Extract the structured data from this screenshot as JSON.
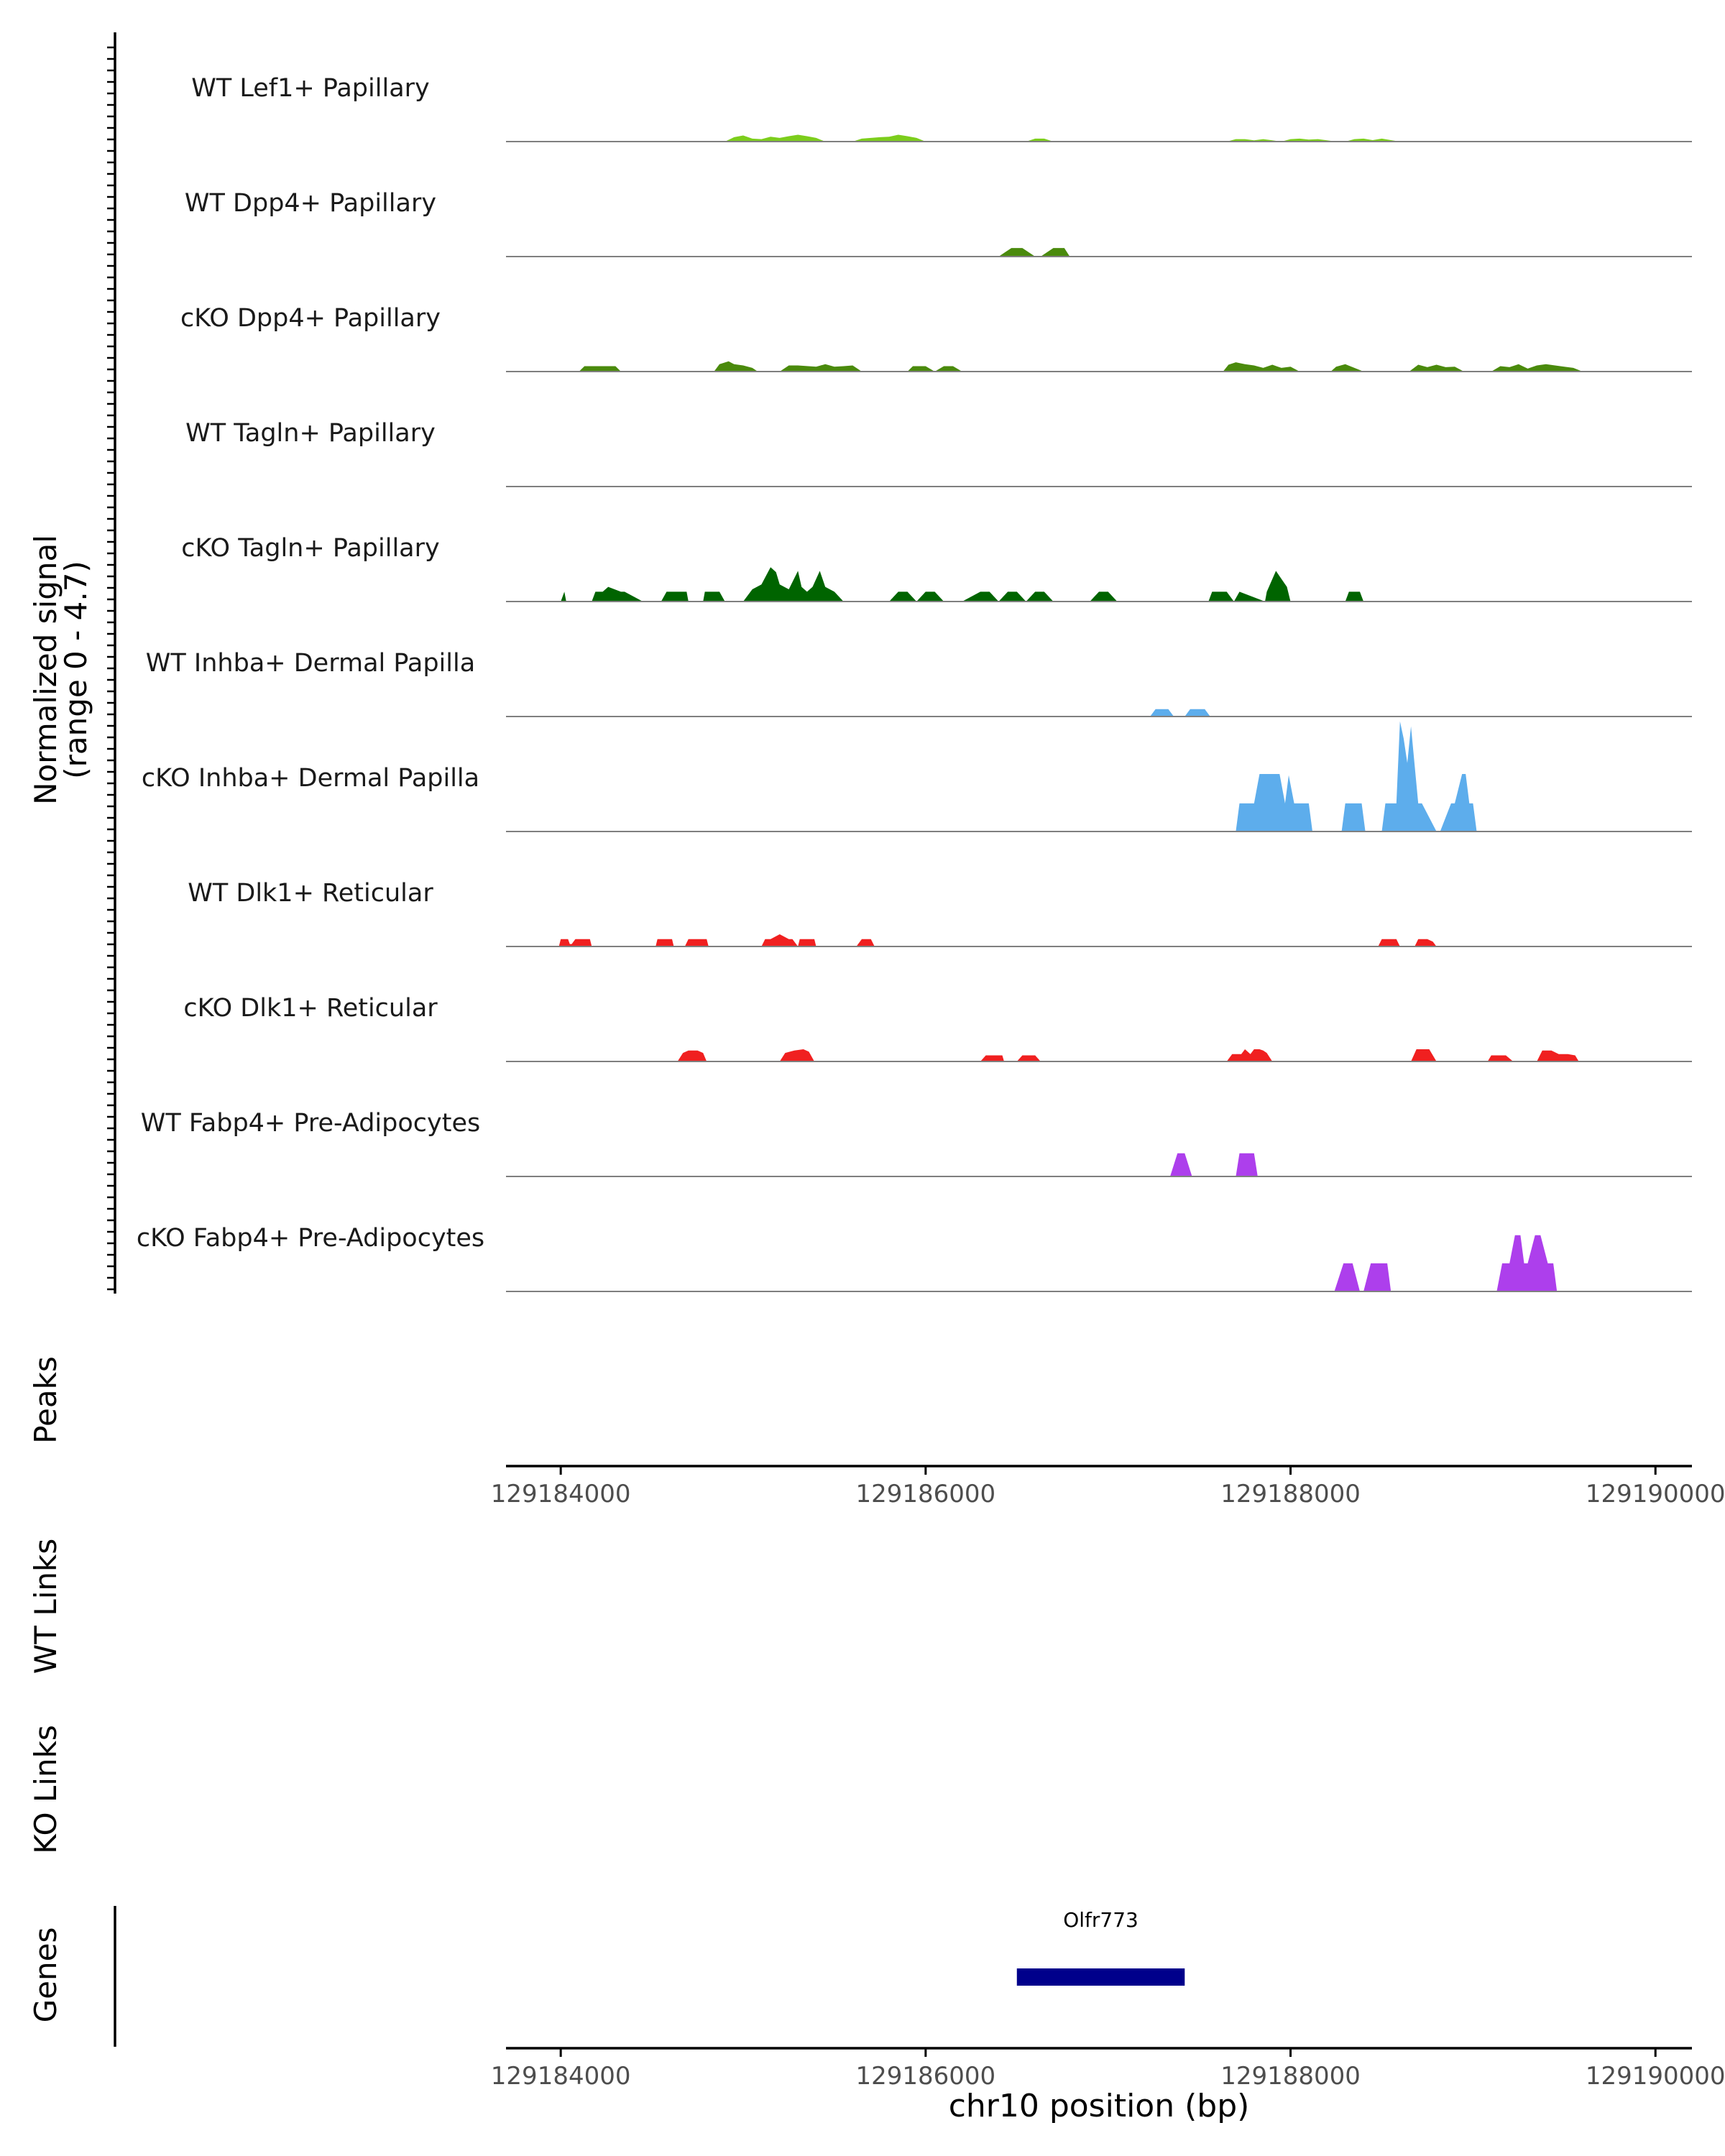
{
  "chart_data": {
    "type": "area",
    "title": "",
    "xlabel": "chr10 position (bp)",
    "ylabel": "Normalized signal",
    "ylabel_range": "(range 0 - 4.7)",
    "ylim": [
      0,
      4.7
    ],
    "xlim": [
      129183700,
      129190200
    ],
    "x_ticks": [
      129184000,
      129186000,
      129188000,
      129190000
    ],
    "x_tick_labels": [
      "129184000",
      "129186000",
      "129188000",
      "129190000"
    ],
    "track_labels": {
      "peaks": "Peaks",
      "wt_links": "WT Links",
      "ko_links": "KO Links",
      "genes": "Genes"
    },
    "genes": [
      {
        "name": "Olfr773",
        "start": 129186500,
        "end": 129187420,
        "color": "#00008B"
      }
    ],
    "series": [
      {
        "name": "WT Lef1+ Papillary",
        "color": "#7CCD1C",
        "x": [
          129184900,
          129184950,
          129185000,
          129185050,
          129185100,
          129185150,
          129185200,
          129185250,
          129185300,
          129185350,
          129185400,
          129185450,
          129185600,
          129185650,
          129185700,
          129185750,
          129185800,
          129185850,
          129185900,
          129185950,
          129186000,
          129186550,
          129186600,
          129186650,
          129186700,
          129187650,
          129187700,
          129187750,
          129187800,
          129187850,
          129187900,
          129187950,
          129188000,
          129188050,
          129188100,
          129188150,
          129188200,
          129188250,
          129188300,
          129188350,
          129188400,
          129188450,
          129188500,
          129188550,
          129188600
        ],
        "y": [
          0,
          0.18,
          0.25,
          0.12,
          0.1,
          0.2,
          0.15,
          0.22,
          0.28,
          0.22,
          0.15,
          0,
          0,
          0.12,
          0.15,
          0.18,
          0.2,
          0.28,
          0.22,
          0.15,
          0,
          0,
          0.12,
          0.12,
          0,
          0,
          0.1,
          0.1,
          0.05,
          0.1,
          0.05,
          0,
          0.1,
          0.12,
          0.08,
          0.1,
          0.05,
          0,
          0,
          0.1,
          0.12,
          0.06,
          0.12,
          0.06,
          0
        ]
      },
      {
        "name": "WT Dpp4+ Papillary",
        "color": "#4A8A0C",
        "x": [
          129186400,
          129186470,
          129186530,
          129186600,
          129186630,
          129186700,
          129186760,
          129186790
        ],
        "y": [
          0,
          0.35,
          0.35,
          0,
          0,
          0.35,
          0.35,
          0
        ]
      },
      {
        "name": "cKO Dpp4+ Papillary",
        "color": "#4A8A0C",
        "x": [
          129184100,
          129184130,
          129184300,
          129184330,
          129184840,
          129184870,
          129184920,
          129184950,
          129185000,
          129185050,
          129185080,
          129185200,
          129185250,
          129185300,
          129185400,
          129185450,
          129185500,
          129185550,
          129185600,
          129185650,
          129185900,
          129185930,
          129186000,
          129186050,
          129186100,
          129186150,
          129186200,
          129187630,
          129187660,
          129187700,
          129187750,
          129187800,
          129187850,
          129187900,
          129187950,
          129188000,
          129188050,
          129188220,
          129188250,
          129188300,
          129188350,
          129188400,
          129188650,
          129188700,
          129188750,
          129188800,
          129188850,
          129188900,
          129188950,
          129189100,
          129189150,
          129189200,
          129189250,
          129189300,
          129189350,
          129189400,
          129189450,
          129189500,
          129189550,
          129189600
        ],
        "y": [
          0,
          0.22,
          0.22,
          0,
          0,
          0.3,
          0.42,
          0.3,
          0.25,
          0.15,
          0,
          0,
          0.25,
          0.25,
          0.2,
          0.3,
          0.2,
          0.22,
          0.25,
          0,
          0,
          0.22,
          0.22,
          0,
          0.22,
          0.22,
          0,
          0,
          0.28,
          0.38,
          0.3,
          0.25,
          0.15,
          0.28,
          0.15,
          0.2,
          0,
          0,
          0.2,
          0.3,
          0.15,
          0,
          0,
          0.28,
          0.18,
          0.28,
          0.18,
          0.2,
          0,
          0,
          0.22,
          0.18,
          0.3,
          0.12,
          0.25,
          0.3,
          0.25,
          0.2,
          0.15,
          0
        ]
      },
      {
        "name": "WT Tagln+ Papillary",
        "color": "#006400",
        "x": [],
        "y": []
      },
      {
        "name": "cKO Tagln+ Papillary",
        "color": "#006400",
        "x": [
          129184000,
          129184020,
          129184030,
          129184170,
          129184190,
          129184230,
          129184260,
          129184330,
          129184350,
          129184450,
          129184550,
          129184580,
          129184690,
          129184700,
          129184780,
          129184790,
          129184870,
          129184900,
          129185000,
          129185050,
          129185100,
          129185150,
          129185180,
          129185200,
          129185250,
          129185300,
          129185320,
          129185350,
          129185380,
          129185420,
          129185450,
          129185500,
          129185550,
          129185800,
          129185850,
          129185900,
          129185950,
          129186000,
          129186050,
          129186100,
          129186200,
          129186300,
          129186350,
          129186400,
          129186450,
          129186500,
          129186550,
          129186600,
          129186650,
          129186700,
          129186900,
          129186950,
          129187000,
          129187050,
          129187550,
          129187570,
          129187650,
          129187690,
          129187720,
          129187860,
          129187870,
          129187920,
          129187980,
          129188000,
          129188300,
          129188320,
          129188380,
          129188400
        ],
        "y": [
          0,
          0.4,
          0,
          0,
          0.4,
          0.4,
          0.6,
          0.4,
          0.4,
          0,
          0,
          0.4,
          0.4,
          0,
          0,
          0.4,
          0.4,
          0,
          0,
          0.5,
          0.7,
          1.4,
          1.2,
          0.7,
          0.5,
          1.25,
          0.6,
          0.4,
          0.6,
          1.25,
          0.6,
          0.4,
          0,
          0,
          0.4,
          0.4,
          0,
          0.4,
          0.4,
          0,
          0,
          0.4,
          0.4,
          0,
          0.4,
          0.4,
          0,
          0.4,
          0.4,
          0,
          0,
          0.4,
          0.4,
          0,
          0,
          0.4,
          0.4,
          0,
          0.4,
          0,
          0.4,
          1.25,
          0.6,
          0,
          0,
          0.4,
          0.4,
          0
        ]
      },
      {
        "name": "WT Inhba+ Dermal Papilla",
        "color": "#5DADEC",
        "x": [
          129187230,
          129187260,
          129187330,
          129187360,
          129187420,
          129187450,
          129187530,
          129187560
        ],
        "y": [
          0,
          0.3,
          0.3,
          0,
          0,
          0.3,
          0.3,
          0
        ]
      },
      {
        "name": "cKO Inhba+ Dermal Papilla",
        "color": "#5DADEC",
        "x": [
          129187700,
          129187720,
          129187800,
          129187830,
          129187940,
          129187970,
          129187990,
          129188020,
          129188100,
          129188120,
          129188280,
          129188300,
          129188390,
          129188410,
          129188500,
          129188520,
          129188580,
          129188600,
          129188620,
          129188640,
          129188660,
          129188700,
          129188720,
          129188800,
          129188820,
          129188880,
          129188900,
          129188940,
          129188960,
          129188980,
          129189000,
          129189020
        ],
        "y": [
          0,
          1.15,
          1.15,
          2.35,
          2.35,
          1.15,
          2.3,
          1.15,
          1.15,
          0,
          0,
          1.15,
          1.15,
          0,
          0,
          1.15,
          1.15,
          4.5,
          3.8,
          2.8,
          4.3,
          1.15,
          1.15,
          0,
          0,
          1.15,
          1.15,
          2.35,
          2.35,
          1.15,
          1.15,
          0
        ]
      },
      {
        "name": "WT Dlk1+ Reticular",
        "color": "#F02020",
        "x": [
          129183990,
          129184000,
          129184040,
          129184050,
          129184060,
          129184080,
          129184160,
          129184170,
          129184520,
          129184530,
          129184610,
          129184620,
          129184680,
          129184700,
          129184740,
          129184760,
          129184800,
          129184810,
          129185100,
          129185120,
          129185150,
          129185200,
          129185250,
          129185270,
          129185300,
          129185310,
          129185390,
          129185400,
          129185620,
          129185650,
          129185700,
          129185720,
          129188480,
          129188500,
          129188580,
          129188600,
          129188680,
          129188700,
          129188750,
          129188780,
          129188800
        ],
        "y": [
          0,
          0.3,
          0.3,
          0.1,
          0.1,
          0.3,
          0.3,
          0,
          0,
          0.3,
          0.3,
          0,
          0,
          0.3,
          0.3,
          0.3,
          0.3,
          0,
          0,
          0.3,
          0.3,
          0.5,
          0.3,
          0.3,
          0,
          0.3,
          0.3,
          0,
          0,
          0.3,
          0.3,
          0,
          0,
          0.3,
          0.3,
          0,
          0,
          0.3,
          0.3,
          0.2,
          0
        ]
      },
      {
        "name": "cKO Dlk1+ Reticular",
        "color": "#F02020",
        "x": [
          129184640,
          129184670,
          129184700,
          129184750,
          129184780,
          129184800,
          129185200,
          129185230,
          129185280,
          129185330,
          129185360,
          129185390,
          129186300,
          129186330,
          129186420,
          129186430,
          129186500,
          129186530,
          129186600,
          129186630,
          129187650,
          129187680,
          129187730,
          129187750,
          129187780,
          129187800,
          129187830,
          129187850,
          129187870,
          129187900,
          129188660,
          129188690,
          129188760,
          129188800,
          129189080,
          129189100,
          129189180,
          129189220,
          129189350,
          129189380,
          129189430,
          129189470,
          129189520,
          129189560,
          129189580
        ],
        "y": [
          0,
          0.35,
          0.45,
          0.45,
          0.35,
          0,
          0,
          0.35,
          0.45,
          0.5,
          0.4,
          0,
          0,
          0.25,
          0.25,
          0,
          0,
          0.25,
          0.25,
          0,
          0,
          0.3,
          0.3,
          0.5,
          0.3,
          0.5,
          0.5,
          0.45,
          0.35,
          0,
          0,
          0.5,
          0.5,
          0,
          0,
          0.25,
          0.25,
          0,
          0,
          0.45,
          0.45,
          0.3,
          0.3,
          0.25,
          0
        ]
      },
      {
        "name": "WT Fabp4+ Pre-Adipocytes",
        "color": "#AD3FEC",
        "x": [
          129187340,
          129187380,
          129187420,
          129187460,
          129187700,
          129187720,
          129187800,
          129187820
        ],
        "y": [
          0,
          0.95,
          0.95,
          0,
          0,
          0.95,
          0.95,
          0
        ]
      },
      {
        "name": "cKO Fabp4+ Pre-Adipocytes",
        "color": "#AD3FEC",
        "x": [
          129188240,
          129188290,
          129188340,
          129188380,
          129188400,
          129188440,
          129188530,
          129188550,
          129189130,
          129189160,
          129189200,
          129189230,
          129189260,
          129189280,
          129189300,
          129189340,
          129189370,
          129189410,
          129189440,
          129189460
        ],
        "y": [
          0,
          1.15,
          1.15,
          0,
          0,
          1.15,
          1.15,
          0,
          0,
          1.15,
          1.15,
          2.3,
          2.3,
          1.15,
          1.15,
          2.3,
          2.3,
          1.15,
          1.15,
          0
        ]
      }
    ]
  }
}
